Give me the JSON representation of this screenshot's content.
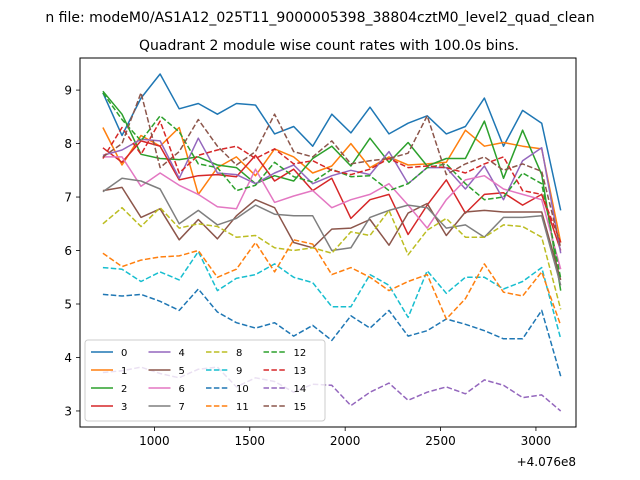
{
  "suptitle": "n file: modeM0/AS1A12_025T11_9000005398_38804cztM0_level2_quad_clean",
  "chart_data": {
    "type": "line",
    "title": "Quadrant 2 module wise count rates with 100.0s bins.",
    "xlabel": "",
    "ylabel": "",
    "x_offset_label": "+4.076e8",
    "xlim": [
      610,
      3210
    ],
    "ylim": [
      2.7,
      9.6
    ],
    "x_ticks": [
      1000,
      1500,
      2000,
      2500,
      3000
    ],
    "y_ticks": [
      3,
      4,
      5,
      6,
      7,
      8,
      9
    ],
    "x": [
      730,
      830,
      930,
      1030,
      1130,
      1230,
      1330,
      1430,
      1530,
      1630,
      1730,
      1830,
      1930,
      2030,
      2130,
      2230,
      2330,
      2430,
      2530,
      2630,
      2730,
      2830,
      2930,
      3030,
      3130
    ],
    "legend": {
      "location": "lower-left",
      "columns": 4
    },
    "series": [
      {
        "name": "0",
        "color": "#1f77b4",
        "style": "solid",
        "values": [
          8.95,
          8.15,
          8.85,
          9.3,
          8.65,
          8.75,
          8.55,
          8.75,
          8.72,
          8.18,
          8.32,
          7.95,
          8.55,
          8.2,
          8.68,
          8.18,
          8.38,
          8.52,
          8.18,
          8.32,
          8.85,
          7.95,
          8.62,
          8.38,
          6.75
        ]
      },
      {
        "name": "1",
        "color": "#ff7f0e",
        "style": "solid",
        "values": [
          8.3,
          7.6,
          8.15,
          7.95,
          8.3,
          7.05,
          7.55,
          7.75,
          7.4,
          7.9,
          7.75,
          7.45,
          7.58,
          8.0,
          7.55,
          7.75,
          7.6,
          7.62,
          7.65,
          8.25,
          7.95,
          8.02,
          7.95,
          7.9,
          6.15
        ]
      },
      {
        "name": "2",
        "color": "#2ca02c",
        "style": "solid",
        "values": [
          8.98,
          8.55,
          7.8,
          7.72,
          7.7,
          7.75,
          7.6,
          7.55,
          7.25,
          7.4,
          7.3,
          7.72,
          7.95,
          7.58,
          8.1,
          7.65,
          8.02,
          7.58,
          7.72,
          7.72,
          8.42,
          7.35,
          8.25,
          7.42,
          5.25
        ]
      },
      {
        "name": "3",
        "color": "#d62728",
        "style": "solid",
        "values": [
          7.92,
          7.65,
          8.05,
          7.95,
          7.32,
          7.4,
          7.42,
          7.38,
          7.78,
          7.3,
          7.52,
          7.12,
          7.35,
          6.6,
          6.95,
          7.05,
          6.3,
          6.85,
          7.32,
          6.7,
          7.05,
          7.08,
          6.85,
          7.05,
          6.0
        ]
      },
      {
        "name": "4",
        "color": "#9467bd",
        "style": "solid",
        "values": [
          7.78,
          7.88,
          8.08,
          8.05,
          7.35,
          8.1,
          7.45,
          7.42,
          7.25,
          7.45,
          7.6,
          7.25,
          7.4,
          7.5,
          7.42,
          7.85,
          7.25,
          7.55,
          7.55,
          7.15,
          7.58,
          6.95,
          7.68,
          7.92,
          5.95
        ]
      },
      {
        "name": "5",
        "color": "#8c564b",
        "style": "solid",
        "values": [
          7.12,
          7.18,
          6.62,
          6.78,
          6.2,
          6.58,
          6.22,
          6.65,
          6.95,
          6.8,
          6.15,
          6.05,
          6.4,
          6.42,
          6.58,
          6.1,
          6.7,
          6.88,
          6.28,
          6.72,
          6.75,
          6.72,
          6.72,
          6.72,
          5.45
        ]
      },
      {
        "name": "6",
        "color": "#e377c2",
        "style": "solid",
        "values": [
          7.75,
          7.75,
          7.2,
          7.45,
          7.22,
          7.05,
          6.82,
          6.78,
          7.52,
          6.9,
          7.02,
          7.12,
          6.8,
          6.95,
          7.05,
          7.25,
          6.85,
          6.42,
          6.95,
          7.32,
          7.4,
          7.15,
          7.05,
          6.95,
          5.65
        ]
      },
      {
        "name": "7",
        "color": "#7f7f7f",
        "style": "solid",
        "values": [
          7.1,
          7.35,
          7.3,
          7.15,
          6.5,
          6.75,
          6.48,
          6.6,
          6.85,
          6.68,
          6.65,
          6.65,
          6.0,
          6.05,
          6.62,
          6.75,
          6.85,
          6.8,
          6.42,
          6.48,
          6.25,
          6.62,
          6.62,
          6.65,
          5.35
        ]
      },
      {
        "name": "8",
        "color": "#bcbd22",
        "style": "dashed",
        "values": [
          6.5,
          6.8,
          6.45,
          6.8,
          6.42,
          6.5,
          6.45,
          6.25,
          6.28,
          6.05,
          6.0,
          6.05,
          5.95,
          6.35,
          6.28,
          6.75,
          5.92,
          6.38,
          6.6,
          6.25,
          6.25,
          6.48,
          6.45,
          6.25,
          4.9
        ]
      },
      {
        "name": "9",
        "color": "#17becf",
        "style": "dashed",
        "values": [
          5.68,
          5.65,
          5.42,
          5.6,
          5.45,
          5.98,
          5.25,
          5.48,
          5.55,
          5.75,
          5.5,
          5.4,
          4.95,
          4.95,
          5.55,
          5.35,
          4.75,
          5.62,
          5.2,
          5.5,
          5.5,
          5.28,
          5.42,
          5.68,
          4.35
        ]
      },
      {
        "name": "10",
        "color": "#1f77b4",
        "style": "dashed",
        "values": [
          5.18,
          5.15,
          5.18,
          5.05,
          4.88,
          5.28,
          4.85,
          4.65,
          4.55,
          4.65,
          4.4,
          4.6,
          4.32,
          4.78,
          4.55,
          4.88,
          4.4,
          4.5,
          4.72,
          4.62,
          4.5,
          4.35,
          4.35,
          4.88,
          3.65
        ]
      },
      {
        "name": "11",
        "color": "#ff7f0e",
        "style": "dashed",
        "values": [
          5.95,
          5.7,
          5.82,
          5.88,
          5.9,
          6.0,
          5.5,
          5.65,
          6.15,
          5.6,
          6.2,
          6.12,
          5.55,
          5.68,
          5.5,
          5.25,
          5.42,
          5.55,
          4.72,
          5.1,
          5.75,
          5.22,
          5.15,
          5.6,
          4.6
        ]
      },
      {
        "name": "12",
        "color": "#2ca02c",
        "style": "dashed",
        "values": [
          8.95,
          8.45,
          8.05,
          8.52,
          8.22,
          7.62,
          7.55,
          7.12,
          7.22,
          7.65,
          7.38,
          7.28,
          7.52,
          7.38,
          7.4,
          7.12,
          7.25,
          7.55,
          7.62,
          7.25,
          6.95,
          7.0,
          7.45,
          7.25,
          5.48
        ]
      },
      {
        "name": "13",
        "color": "#d62728",
        "style": "dashed",
        "values": [
          7.72,
          8.3,
          7.8,
          8.42,
          7.45,
          7.78,
          7.88,
          7.95,
          7.72,
          7.9,
          7.62,
          7.68,
          7.5,
          7.42,
          7.52,
          7.72,
          7.55,
          7.58,
          7.55,
          7.45,
          7.62,
          7.75,
          7.12,
          7.05,
          6.15
        ]
      },
      {
        "name": "14",
        "color": "#9467bd",
        "style": "dashed",
        "values": [
          3.72,
          3.75,
          3.82,
          3.7,
          3.62,
          3.78,
          3.82,
          3.45,
          3.62,
          3.55,
          3.35,
          3.5,
          3.48,
          3.1,
          3.35,
          3.52,
          3.2,
          3.35,
          3.45,
          3.32,
          3.58,
          3.48,
          3.25,
          3.3,
          3.0
        ]
      },
      {
        "name": "15",
        "color": "#8c564b",
        "style": "dashed",
        "values": [
          7.75,
          8.0,
          8.95,
          7.55,
          7.85,
          8.45,
          7.95,
          7.6,
          7.85,
          8.55,
          7.85,
          7.75,
          8.05,
          7.62,
          7.68,
          7.72,
          7.82,
          8.52,
          7.42,
          7.62,
          7.75,
          7.5,
          7.62,
          7.48,
          6.05
        ]
      }
    ]
  }
}
